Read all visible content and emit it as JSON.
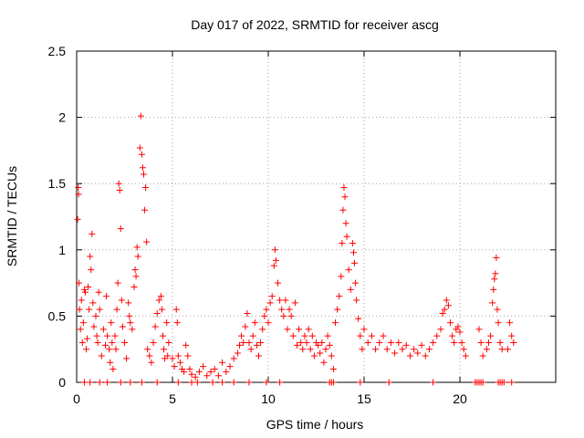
{
  "chart_data": {
    "type": "scatter",
    "title": "Day 017 of 2022, SRMTID for receiver ascg",
    "xlabel": "GPS time / hours",
    "ylabel": "SRMTID / TECUs",
    "xlim": [
      0,
      25
    ],
    "ylim": [
      0,
      2.5
    ],
    "xticks": [
      0,
      5,
      10,
      15,
      20
    ],
    "yticks": [
      0,
      0.5,
      1,
      1.5,
      2,
      2.5
    ],
    "xtick_labels": [
      "0",
      "5",
      "10",
      "15",
      "20"
    ],
    "ytick_labels": [
      "0",
      "0.5",
      "1",
      "1.5",
      "2",
      "2.5"
    ],
    "grid": true,
    "marker": "+",
    "color": "#ff0000",
    "series": [
      {
        "name": "SRMTID",
        "points": [
          [
            0.05,
            1.23
          ],
          [
            0.08,
            1.47
          ],
          [
            0.1,
            1.42
          ],
          [
            0.12,
            0.75
          ],
          [
            0.15,
            0.55
          ],
          [
            0.2,
            0.4
          ],
          [
            0.25,
            0.62
          ],
          [
            0.3,
            0.3
          ],
          [
            0.35,
            0.45
          ],
          [
            0.4,
            0.7
          ],
          [
            0.45,
            0.68
          ],
          [
            0.5,
            0.25
          ],
          [
            0.55,
            0.33
          ],
          [
            0.6,
            0.72
          ],
          [
            0.65,
            0.55
          ],
          [
            0.7,
            0.95
          ],
          [
            0.75,
            0.85
          ],
          [
            0.8,
            1.12
          ],
          [
            0.85,
            0.6
          ],
          [
            0.9,
            0.42
          ],
          [
            1.0,
            0.5
          ],
          [
            1.05,
            0.35
          ],
          [
            1.1,
            0.3
          ],
          [
            1.15,
            0.68
          ],
          [
            1.2,
            0.55
          ],
          [
            1.3,
            0.2
          ],
          [
            1.4,
            0.4
          ],
          [
            1.5,
            0.28
          ],
          [
            1.55,
            0.65
          ],
          [
            1.6,
            0.35
          ],
          [
            1.7,
            0.25
          ],
          [
            1.75,
            0.15
          ],
          [
            1.8,
            0.45
          ],
          [
            1.85,
            0.3
          ],
          [
            1.9,
            0.1
          ],
          [
            2.0,
            0.35
          ],
          [
            2.05,
            0.25
          ],
          [
            2.1,
            0.55
          ],
          [
            2.15,
            0.75
          ],
          [
            2.2,
            1.5
          ],
          [
            2.25,
            1.45
          ],
          [
            2.3,
            1.16
          ],
          [
            2.35,
            0.62
          ],
          [
            2.4,
            0.42
          ],
          [
            2.5,
            0.3
          ],
          [
            2.6,
            0.18
          ],
          [
            2.7,
            0.6
          ],
          [
            2.75,
            0.5
          ],
          [
            2.8,
            0.45
          ],
          [
            2.9,
            0.4
          ],
          [
            3.0,
            0.72
          ],
          [
            3.05,
            0.85
          ],
          [
            3.1,
            0.8
          ],
          [
            3.15,
            1.02
          ],
          [
            3.2,
            0.95
          ],
          [
            3.3,
            1.77
          ],
          [
            3.35,
            2.01
          ],
          [
            3.4,
            1.72
          ],
          [
            3.45,
            1.62
          ],
          [
            3.5,
            1.57
          ],
          [
            3.55,
            1.3
          ],
          [
            3.6,
            1.47
          ],
          [
            3.65,
            1.06
          ],
          [
            3.7,
            0.25
          ],
          [
            3.8,
            0.2
          ],
          [
            3.9,
            0.15
          ],
          [
            4.0,
            0.3
          ],
          [
            4.1,
            0.42
          ],
          [
            4.2,
            0.52
          ],
          [
            4.3,
            0.62
          ],
          [
            4.4,
            0.65
          ],
          [
            4.45,
            0.55
          ],
          [
            4.5,
            0.35
          ],
          [
            4.55,
            0.25
          ],
          [
            4.6,
            0.18
          ],
          [
            4.7,
            0.45
          ],
          [
            4.75,
            0.2
          ],
          [
            4.8,
            0.3
          ],
          [
            5.0,
            0.18
          ],
          [
            5.1,
            0.12
          ],
          [
            5.2,
            0.55
          ],
          [
            5.25,
            0.45
          ],
          [
            5.3,
            0.2
          ],
          [
            5.4,
            0.15
          ],
          [
            5.5,
            0.1
          ],
          [
            5.6,
            0.08
          ],
          [
            5.7,
            0.28
          ],
          [
            5.8,
            0.2
          ],
          [
            5.9,
            0.1
          ],
          [
            6.0,
            0.06
          ],
          [
            6.2,
            0.04
          ],
          [
            6.4,
            0.08
          ],
          [
            6.6,
            0.12
          ],
          [
            6.8,
            0.05
          ],
          [
            7.0,
            0.08
          ],
          [
            7.2,
            0.1
          ],
          [
            7.4,
            0.05
          ],
          [
            7.6,
            0.15
          ],
          [
            7.8,
            0.08
          ],
          [
            8.0,
            0.12
          ],
          [
            8.2,
            0.18
          ],
          [
            8.4,
            0.22
          ],
          [
            8.5,
            0.28
          ],
          [
            8.6,
            0.35
          ],
          [
            8.7,
            0.3
          ],
          [
            8.8,
            0.42
          ],
          [
            8.9,
            0.52
          ],
          [
            9.0,
            0.3
          ],
          [
            9.1,
            0.25
          ],
          [
            9.2,
            0.35
          ],
          [
            9.3,
            0.45
          ],
          [
            9.4,
            0.28
          ],
          [
            9.5,
            0.2
          ],
          [
            9.6,
            0.3
          ],
          [
            9.7,
            0.4
          ],
          [
            9.8,
            0.5
          ],
          [
            9.9,
            0.55
          ],
          [
            10.0,
            0.45
          ],
          [
            10.1,
            0.6
          ],
          [
            10.2,
            0.65
          ],
          [
            10.3,
            0.88
          ],
          [
            10.35,
            1.0
          ],
          [
            10.4,
            0.92
          ],
          [
            10.5,
            0.75
          ],
          [
            10.6,
            0.62
          ],
          [
            10.7,
            0.55
          ],
          [
            10.8,
            0.5
          ],
          [
            10.9,
            0.62
          ],
          [
            11.0,
            0.4
          ],
          [
            11.1,
            0.55
          ],
          [
            11.2,
            0.5
          ],
          [
            11.3,
            0.35
          ],
          [
            11.4,
            0.6
          ],
          [
            11.5,
            0.28
          ],
          [
            11.6,
            0.4
          ],
          [
            11.7,
            0.3
          ],
          [
            11.8,
            0.25
          ],
          [
            11.9,
            0.35
          ],
          [
            12.0,
            0.3
          ],
          [
            12.1,
            0.4
          ],
          [
            12.2,
            0.25
          ],
          [
            12.3,
            0.35
          ],
          [
            12.4,
            0.2
          ],
          [
            12.5,
            0.3
          ],
          [
            12.6,
            0.28
          ],
          [
            12.7,
            0.22
          ],
          [
            12.8,
            0.3
          ],
          [
            12.9,
            0.15
          ],
          [
            13.0,
            0.25
          ],
          [
            13.1,
            0.35
          ],
          [
            13.2,
            0.28
          ],
          [
            13.3,
            0.2
          ],
          [
            13.4,
            0.1
          ],
          [
            13.5,
            0.45
          ],
          [
            13.6,
            0.55
          ],
          [
            13.7,
            0.65
          ],
          [
            13.8,
            0.8
          ],
          [
            13.85,
            1.05
          ],
          [
            13.9,
            1.3
          ],
          [
            13.95,
            1.47
          ],
          [
            14.0,
            1.4
          ],
          [
            14.05,
            1.2
          ],
          [
            14.1,
            1.1
          ],
          [
            14.2,
            0.85
          ],
          [
            14.3,
            0.7
          ],
          [
            14.4,
            1.05
          ],
          [
            14.45,
            0.98
          ],
          [
            14.5,
            0.9
          ],
          [
            14.55,
            0.75
          ],
          [
            14.6,
            0.62
          ],
          [
            14.7,
            0.48
          ],
          [
            14.8,
            0.35
          ],
          [
            14.9,
            0.25
          ],
          [
            15.0,
            0.4
          ],
          [
            15.2,
            0.3
          ],
          [
            15.4,
            0.35
          ],
          [
            15.6,
            0.25
          ],
          [
            15.8,
            0.3
          ],
          [
            16.0,
            0.35
          ],
          [
            16.2,
            0.25
          ],
          [
            16.4,
            0.3
          ],
          [
            16.6,
            0.22
          ],
          [
            16.8,
            0.3
          ],
          [
            17.0,
            0.25
          ],
          [
            17.2,
            0.28
          ],
          [
            17.4,
            0.2
          ],
          [
            17.6,
            0.25
          ],
          [
            17.8,
            0.22
          ],
          [
            18.0,
            0.28
          ],
          [
            18.2,
            0.2
          ],
          [
            18.4,
            0.25
          ],
          [
            18.6,
            0.3
          ],
          [
            18.8,
            0.35
          ],
          [
            19.0,
            0.4
          ],
          [
            19.1,
            0.52
          ],
          [
            19.2,
            0.55
          ],
          [
            19.3,
            0.62
          ],
          [
            19.4,
            0.58
          ],
          [
            19.5,
            0.45
          ],
          [
            19.6,
            0.35
          ],
          [
            19.7,
            0.3
          ],
          [
            19.8,
            0.4
          ],
          [
            19.9,
            0.42
          ],
          [
            20.0,
            0.38
          ],
          [
            20.1,
            0.3
          ],
          [
            20.2,
            0.25
          ],
          [
            20.3,
            0.2
          ],
          [
            21.0,
            0.4
          ],
          [
            21.1,
            0.3
          ],
          [
            21.2,
            0.2
          ],
          [
            21.4,
            0.25
          ],
          [
            21.5,
            0.3
          ],
          [
            21.6,
            0.35
          ],
          [
            21.7,
            0.6
          ],
          [
            21.75,
            0.7
          ],
          [
            21.8,
            0.78
          ],
          [
            21.85,
            0.82
          ],
          [
            21.9,
            0.94
          ],
          [
            21.95,
            0.55
          ],
          [
            22.0,
            0.45
          ],
          [
            22.1,
            0.3
          ],
          [
            22.2,
            0.25
          ],
          [
            22.5,
            0.25
          ],
          [
            22.6,
            0.45
          ],
          [
            22.7,
            0.35
          ],
          [
            22.8,
            0.3
          ]
        ]
      }
    ],
    "baseline_markers_x": [
      0.4,
      0.7,
      1.2,
      1.6,
      2.3,
      2.8,
      3.4,
      4.2,
      5.3,
      6.0,
      6.3,
      7.1,
      7.6,
      8.2,
      9.0,
      9.9,
      10.6,
      13.2,
      13.3,
      13.4,
      14.8,
      16.3,
      18.6,
      20.8,
      20.9,
      21.0,
      21.1,
      21.2,
      22.0,
      22.1,
      22.2,
      22.3,
      22.7
    ]
  }
}
